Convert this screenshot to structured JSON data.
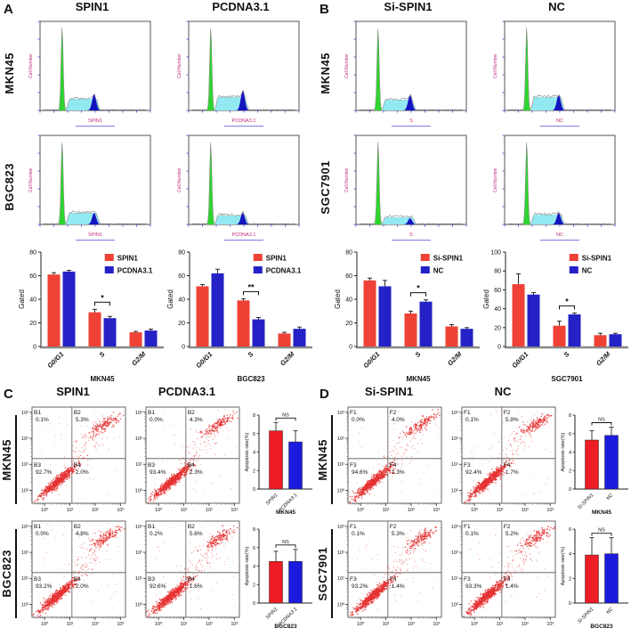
{
  "colors": {
    "bar_red": "#ef4136",
    "bar_blue": "#2421c6",
    "apop_red": "#ee1c25",
    "apop_blue": "#1b1bdd",
    "hist_green": "#2ed52e",
    "hist_cyan": "#93e9f2",
    "hist_blue": "#1414bf",
    "dot_red": "#e53030",
    "tick_blue": "#4747cf",
    "label_magenta": "#c02a7a"
  },
  "panels": {
    "A": {
      "letter": "A",
      "col_titles": [
        "SPIN1",
        "PCDNA3.1"
      ],
      "row_labels": [
        "MKN45",
        "BGC823"
      ]
    },
    "B": {
      "letter": "B",
      "col_titles": [
        "Si-SPIN1",
        "NC"
      ],
      "row_labels": [
        "MKN45",
        "SGC7901"
      ]
    },
    "C": {
      "letter": "C",
      "col_titles": [
        "SPIN1",
        "PCDNA3.1"
      ],
      "row_labels": [
        "MKN45",
        "BGC823"
      ]
    },
    "D": {
      "letter": "D",
      "col_titles": [
        "Si-SPIN1",
        "NC"
      ],
      "row_labels": [
        "MKN45",
        "SGC7901"
      ]
    }
  },
  "chart_data": [
    {
      "type": "hist",
      "seed": 1,
      "ylabel": "Cell Number",
      "xlabel": "SPIN1",
      "s": 0.13,
      "g2": 0.18
    },
    {
      "type": "hist",
      "seed": 2,
      "ylabel": "Cell Number",
      "xlabel": "PCDNA3.1",
      "s": 0.15,
      "g2": 0.22
    },
    {
      "type": "hist",
      "seed": 3,
      "ylabel": "Cell Number",
      "xlabel": "SPIN1",
      "s": 0.13,
      "g2": 0.13
    },
    {
      "type": "hist",
      "seed": 4,
      "ylabel": "Cell Number",
      "xlabel": "PCDNA3.1",
      "s": 0.1,
      "g2": 0.13
    },
    {
      "type": "hist",
      "seed": 5,
      "ylabel": "Cell Number",
      "xlabel": "S",
      "s": 0.12,
      "g2": 0.17
    },
    {
      "type": "hist",
      "seed": 6,
      "ylabel": "Cell Number",
      "xlabel": "NC",
      "s": 0.15,
      "g2": 0.17
    },
    {
      "type": "hist",
      "seed": 7,
      "ylabel": "Cell Number",
      "xlabel": "S",
      "s": 0.08,
      "g2": 0.07
    },
    {
      "type": "hist",
      "seed": 8,
      "ylabel": "Cell Number",
      "xlabel": "NC",
      "s": 0.11,
      "g2": 0.13
    },
    {
      "type": "groupbar",
      "ylim": 80,
      "yticks": [
        0,
        20,
        40,
        60,
        80
      ],
      "ylabel": "Gated",
      "xlabel": "MKN45",
      "categories": [
        "G0/G1",
        "S",
        "G2/M"
      ],
      "series": [
        {
          "name": "SPIN1",
          "color": "bar_red",
          "values": [
            61,
            29,
            12
          ],
          "errors": [
            1.5,
            2.5,
            0.8
          ]
        },
        {
          "name": "PCDNA3.1",
          "color": "bar_blue",
          "values": [
            63.5,
            24,
            13.5
          ],
          "errors": [
            1,
            1.5,
            1.2
          ]
        }
      ],
      "sig": {
        "cat": 1,
        "label": "*"
      }
    },
    {
      "type": "groupbar",
      "ylim": 80,
      "yticks": [
        0,
        20,
        40,
        60,
        80
      ],
      "ylabel": "Gated",
      "xlabel": "BGC823",
      "categories": [
        "G0/G1",
        "S",
        "G2/M"
      ],
      "series": [
        {
          "name": "SPIN1",
          "color": "bar_red",
          "values": [
            51,
            39,
            11
          ],
          "errors": [
            1.5,
            1.5,
            1
          ]
        },
        {
          "name": "PCDNA3.1",
          "color": "bar_blue",
          "values": [
            62,
            23,
            15
          ],
          "errors": [
            3.5,
            1.5,
            1.5
          ]
        }
      ],
      "sig": {
        "cat": 1,
        "label": "**"
      }
    },
    {
      "type": "groupbar",
      "ylim": 80,
      "yticks": [
        0,
        20,
        40,
        60,
        80
      ],
      "ylabel": "Gated",
      "xlabel": "MKN45",
      "categories": [
        "G0/G1",
        "S",
        "G2/M"
      ],
      "series": [
        {
          "name": "Si-SPIN1",
          "color": "bar_red",
          "values": [
            56,
            28,
            17
          ],
          "errors": [
            2,
            2,
            1.5
          ]
        },
        {
          "name": "NC",
          "color": "bar_blue",
          "values": [
            51,
            38,
            15
          ],
          "errors": [
            5,
            1.5,
            1
          ]
        }
      ],
      "sig": {
        "cat": 1,
        "label": "*"
      }
    },
    {
      "type": "groupbar",
      "ylim": 100,
      "yticks": [
        0,
        20,
        40,
        60,
        80,
        100
      ],
      "ylabel": "Gated",
      "xlabel": "SGC7901",
      "categories": [
        "G0/G1",
        "S",
        "G2/M"
      ],
      "series": [
        {
          "name": "Si-SPIN1",
          "color": "bar_red",
          "values": [
            66,
            22,
            12
          ],
          "errors": [
            11,
            5,
            2
          ]
        },
        {
          "name": "NC",
          "color": "bar_blue",
          "values": [
            55,
            34,
            13
          ],
          "errors": [
            2,
            1.5,
            1
          ]
        }
      ],
      "sig": {
        "cat": 1,
        "label": "*"
      }
    },
    {
      "type": "scatter",
      "seed": 12,
      "ticks": [
        "10⁰",
        "10¹",
        "10²",
        "10³"
      ],
      "quadrants": [
        {
          "name": "B1",
          "pct": "0.1%"
        },
        {
          "name": "B2",
          "pct": "5.3%"
        },
        {
          "name": "B3",
          "pct": "92.7%"
        },
        {
          "name": "B4",
          "pct": "2.0%"
        }
      ]
    },
    {
      "type": "scatter",
      "seed": 13,
      "ticks": [
        "10⁰",
        "10¹",
        "10²",
        "10³"
      ],
      "quadrants": [
        {
          "name": "B1",
          "pct": "0.0%"
        },
        {
          "name": "B2",
          "pct": "4.3%"
        },
        {
          "name": "B3",
          "pct": "93.4%"
        },
        {
          "name": "B4",
          "pct": "2.3%"
        }
      ]
    },
    {
      "type": "pairbar",
      "ylim": 8,
      "yticks": [
        0,
        2,
        4,
        6,
        8
      ],
      "ylabel": "Apoptosis rate(%)",
      "xlabel": "MKN45",
      "ns": "NS",
      "bars": [
        {
          "label": "SPIN1",
          "color": "apop_red",
          "value": 6.3,
          "err": 0.9
        },
        {
          "label": "PCDNA3.1",
          "color": "apop_blue",
          "value": 5.1,
          "err": 1.2
        }
      ]
    },
    {
      "type": "scatter",
      "seed": 15,
      "ticks": [
        "10⁰",
        "10¹",
        "10²",
        "10³"
      ],
      "quadrants": [
        {
          "name": "B1",
          "pct": "0.0%"
        },
        {
          "name": "B2",
          "pct": "4.8%"
        },
        {
          "name": "B3",
          "pct": "93.2%"
        },
        {
          "name": "B4",
          "pct": "2.0%"
        }
      ]
    },
    {
      "type": "scatter",
      "seed": 16,
      "ticks": [
        "10⁰",
        "10¹",
        "10²",
        "10³"
      ],
      "quadrants": [
        {
          "name": "B1",
          "pct": "0.2%"
        },
        {
          "name": "B2",
          "pct": "5.6%"
        },
        {
          "name": "B3",
          "pct": "92.6%"
        },
        {
          "name": "B4",
          "pct": "1.6%"
        }
      ]
    },
    {
      "type": "pairbar",
      "ylim": 8,
      "yticks": [
        0,
        2,
        4,
        6,
        8
      ],
      "ylabel": "Apoptosis rate(%)",
      "xlabel": "BGC823",
      "ns": "NS",
      "bars": [
        {
          "label": "SPIN1",
          "color": "apop_red",
          "value": 4.5,
          "err": 1.1
        },
        {
          "label": "PCDNA3.1",
          "color": "apop_blue",
          "value": 4.5,
          "err": 1.3
        }
      ]
    },
    {
      "type": "scatter",
      "seed": 18,
      "ticks": [
        "10⁰",
        "10¹",
        "10²",
        "10³"
      ],
      "quadrants": [
        {
          "name": "F1",
          "pct": "0.0%"
        },
        {
          "name": "F2",
          "pct": "4.0%"
        },
        {
          "name": "F3",
          "pct": "94.6%"
        },
        {
          "name": "F4",
          "pct": "1.3%"
        }
      ]
    },
    {
      "type": "scatter",
      "seed": 19,
      "ticks": [
        "10⁰",
        "10¹",
        "10²",
        "10³"
      ],
      "quadrants": [
        {
          "name": "F1",
          "pct": "0.1%"
        },
        {
          "name": "F2",
          "pct": "5.9%"
        },
        {
          "name": "F3",
          "pct": "92.4%"
        },
        {
          "name": "F4",
          "pct": "1.7%"
        }
      ]
    },
    {
      "type": "pairbar",
      "ylim": 8,
      "yticks": [
        0,
        2,
        4,
        6,
        8
      ],
      "ylabel": "Apoptosis rate(%)",
      "xlabel": "MKN45",
      "ns": "NS",
      "bars": [
        {
          "label": "Si-SPIN1",
          "color": "apop_red",
          "value": 5.3,
          "err": 1.0
        },
        {
          "label": "NC",
          "color": "apop_blue",
          "value": 5.8,
          "err": 0.9
        }
      ]
    },
    {
      "type": "scatter",
      "seed": 21,
      "ticks": [
        "10⁰",
        "10¹",
        "10²",
        "10³"
      ],
      "quadrants": [
        {
          "name": "F1",
          "pct": "0.1%"
        },
        {
          "name": "F2",
          "pct": "5.3%"
        },
        {
          "name": "F3",
          "pct": "93.2%"
        },
        {
          "name": "F4",
          "pct": "1.4%"
        }
      ]
    },
    {
      "type": "scatter",
      "seed": 22,
      "ticks": [
        "10⁰",
        "10¹",
        "10²",
        "10³"
      ],
      "quadrants": [
        {
          "name": "F1",
          "pct": "0.1%"
        },
        {
          "name": "F2",
          "pct": "5.2%"
        },
        {
          "name": "F3",
          "pct": "93.3%"
        },
        {
          "name": "F4",
          "pct": "1.4%"
        }
      ]
    },
    {
      "type": "pairbar",
      "ylim": 6,
      "yticks": [
        0,
        2,
        4,
        6
      ],
      "ylabel": "Apoptosis rate(%)",
      "xlabel": "BGC823",
      "ns": "NS",
      "bars": [
        {
          "label": "Si-SPIN1",
          "color": "apop_red",
          "value": 3.9,
          "err": 1.4
        },
        {
          "label": "NC",
          "color": "apop_blue",
          "value": 4.0,
          "err": 1.3
        }
      ]
    }
  ]
}
